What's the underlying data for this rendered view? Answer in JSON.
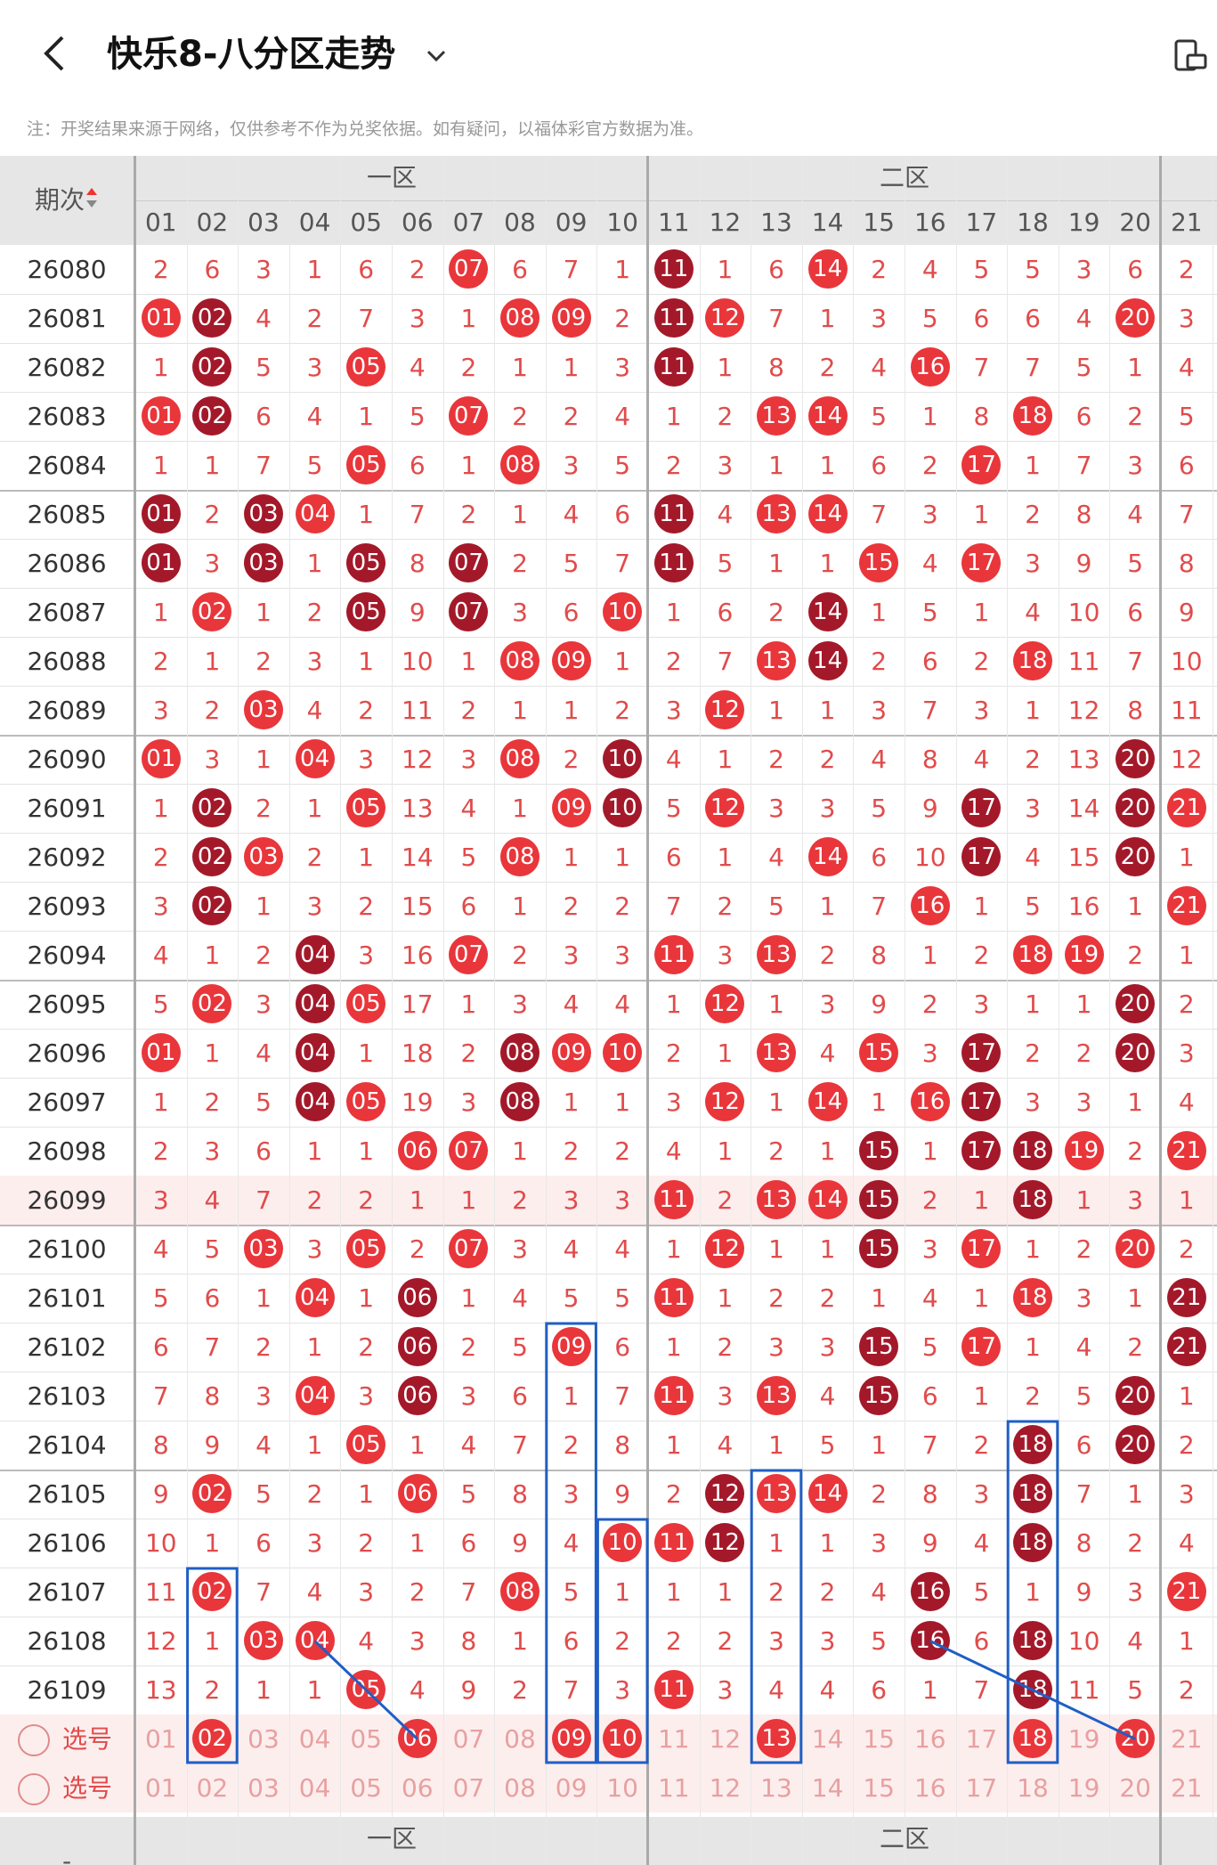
{
  "header": {
    "title": "快乐8-八分区走势",
    "back_icon": "chevron-left-icon",
    "dropdown_icon": "chevron-down-icon",
    "device_icon": "device-toggle-icon"
  },
  "notice": "注：开奖结果来源于网络，仅供参考不作为兑奖依据。如有疑问，以福体彩官方数据为准。",
  "table": {
    "period_header": "期次",
    "sort_icon": "sort-up-down-icon",
    "zones": [
      "一区",
      "二区"
    ],
    "columns": [
      "01",
      "02",
      "03",
      "04",
      "05",
      "06",
      "07",
      "08",
      "09",
      "10",
      "11",
      "12",
      "13",
      "14",
      "15",
      "16",
      "17",
      "18",
      "19",
      "20",
      "21"
    ],
    "rows": [
      {
        "period": "26080",
        "cells": [
          "2",
          "6",
          "3",
          "1",
          "6",
          "2",
          "07",
          "6",
          "7",
          "1",
          "11",
          "1",
          "6",
          "14",
          "2",
          "4",
          "5",
          "5",
          "3",
          "6",
          "2"
        ]
      },
      {
        "period": "26081",
        "cells": [
          "01",
          "02",
          "4",
          "2",
          "7",
          "3",
          "1",
          "08",
          "09",
          "2",
          "11",
          "12",
          "7",
          "1",
          "3",
          "5",
          "6",
          "6",
          "4",
          "20",
          "3"
        ]
      },
      {
        "period": "26082",
        "cells": [
          "1",
          "02",
          "5",
          "3",
          "05",
          "4",
          "2",
          "1",
          "1",
          "3",
          "11",
          "1",
          "8",
          "2",
          "4",
          "16",
          "7",
          "7",
          "5",
          "1",
          "4"
        ]
      },
      {
        "period": "26083",
        "cells": [
          "01",
          "02",
          "6",
          "4",
          "1",
          "5",
          "07",
          "2",
          "2",
          "4",
          "1",
          "2",
          "13",
          "14",
          "5",
          "1",
          "8",
          "18",
          "6",
          "2",
          "5"
        ]
      },
      {
        "period": "26084",
        "cells": [
          "1",
          "1",
          "7",
          "5",
          "05",
          "6",
          "1",
          "08",
          "3",
          "5",
          "2",
          "3",
          "1",
          "1",
          "6",
          "2",
          "17",
          "1",
          "7",
          "3",
          "6"
        ]
      },
      {
        "period": "26085",
        "cells": [
          "01",
          "2",
          "03",
          "04",
          "1",
          "7",
          "2",
          "1",
          "4",
          "6",
          "11",
          "4",
          "13",
          "14",
          "7",
          "3",
          "1",
          "2",
          "8",
          "4",
          "7"
        ]
      },
      {
        "period": "26086",
        "cells": [
          "01",
          "3",
          "03",
          "1",
          "05",
          "8",
          "07",
          "2",
          "5",
          "7",
          "11",
          "5",
          "1",
          "1",
          "15",
          "4",
          "17",
          "3",
          "9",
          "5",
          "8"
        ]
      },
      {
        "period": "26087",
        "cells": [
          "1",
          "02",
          "1",
          "2",
          "05",
          "9",
          "07",
          "3",
          "6",
          "10",
          "1",
          "6",
          "2",
          "14",
          "1",
          "5",
          "1",
          "4",
          "10",
          "6",
          "9"
        ]
      },
      {
        "period": "26088",
        "cells": [
          "2",
          "1",
          "2",
          "3",
          "1",
          "10",
          "1",
          "08",
          "09",
          "1",
          "2",
          "7",
          "13",
          "14",
          "2",
          "6",
          "2",
          "18",
          "11",
          "7",
          "10"
        ]
      },
      {
        "period": "26089",
        "cells": [
          "3",
          "2",
          "03",
          "4",
          "2",
          "11",
          "2",
          "1",
          "1",
          "2",
          "3",
          "12",
          "1",
          "1",
          "3",
          "7",
          "3",
          "1",
          "12",
          "8",
          "11"
        ]
      },
      {
        "period": "26090",
        "cells": [
          "01",
          "3",
          "1",
          "04",
          "3",
          "12",
          "3",
          "08",
          "2",
          "10",
          "4",
          "1",
          "2",
          "2",
          "4",
          "8",
          "4",
          "2",
          "13",
          "20",
          "12"
        ]
      },
      {
        "period": "26091",
        "cells": [
          "1",
          "02",
          "2",
          "1",
          "05",
          "13",
          "4",
          "1",
          "09",
          "10",
          "5",
          "12",
          "3",
          "3",
          "5",
          "9",
          "17",
          "3",
          "14",
          "20",
          "21"
        ]
      },
      {
        "period": "26092",
        "cells": [
          "2",
          "02",
          "03",
          "2",
          "1",
          "14",
          "5",
          "08",
          "1",
          "1",
          "6",
          "1",
          "4",
          "14",
          "6",
          "10",
          "17",
          "4",
          "15",
          "20",
          "1"
        ]
      },
      {
        "period": "26093",
        "cells": [
          "3",
          "02",
          "1",
          "3",
          "2",
          "15",
          "6",
          "1",
          "2",
          "2",
          "7",
          "2",
          "5",
          "1",
          "7",
          "16",
          "1",
          "5",
          "16",
          "1",
          "21"
        ]
      },
      {
        "period": "26094",
        "cells": [
          "4",
          "1",
          "2",
          "04",
          "3",
          "16",
          "07",
          "2",
          "3",
          "3",
          "11",
          "3",
          "13",
          "2",
          "8",
          "1",
          "2",
          "18",
          "19",
          "2",
          "1"
        ]
      },
      {
        "period": "26095",
        "cells": [
          "5",
          "02",
          "3",
          "04",
          "05",
          "17",
          "1",
          "3",
          "4",
          "4",
          "1",
          "12",
          "1",
          "3",
          "9",
          "2",
          "3",
          "1",
          "1",
          "20",
          "2"
        ]
      },
      {
        "period": "26096",
        "cells": [
          "01",
          "1",
          "4",
          "04",
          "1",
          "18",
          "2",
          "08",
          "09",
          "10",
          "2",
          "1",
          "13",
          "4",
          "15",
          "3",
          "17",
          "2",
          "2",
          "20",
          "3"
        ]
      },
      {
        "period": "26097",
        "cells": [
          "1",
          "2",
          "5",
          "04",
          "05",
          "19",
          "3",
          "08",
          "1",
          "1",
          "3",
          "12",
          "1",
          "14",
          "1",
          "16",
          "17",
          "3",
          "3",
          "1",
          "4"
        ]
      },
      {
        "period": "26098",
        "cells": [
          "2",
          "3",
          "6",
          "1",
          "1",
          "06",
          "07",
          "1",
          "2",
          "2",
          "4",
          "1",
          "2",
          "1",
          "15",
          "1",
          "17",
          "18",
          "19",
          "2",
          "21"
        ]
      },
      {
        "period": "26099",
        "cells": [
          "3",
          "4",
          "7",
          "2",
          "2",
          "1",
          "1",
          "2",
          "3",
          "3",
          "11",
          "2",
          "13",
          "14",
          "15",
          "2",
          "1",
          "18",
          "1",
          "3",
          "1"
        ]
      },
      {
        "period": "26100",
        "cells": [
          "4",
          "5",
          "03",
          "3",
          "05",
          "2",
          "07",
          "3",
          "4",
          "4",
          "1",
          "12",
          "1",
          "1",
          "15",
          "3",
          "17",
          "1",
          "2",
          "20",
          "2"
        ]
      },
      {
        "period": "26101",
        "cells": [
          "5",
          "6",
          "1",
          "04",
          "1",
          "06",
          "1",
          "4",
          "5",
          "5",
          "11",
          "1",
          "2",
          "2",
          "1",
          "4",
          "1",
          "18",
          "3",
          "1",
          "21"
        ]
      },
      {
        "period": "26102",
        "cells": [
          "6",
          "7",
          "2",
          "1",
          "2",
          "06",
          "2",
          "5",
          "09",
          "6",
          "1",
          "2",
          "3",
          "3",
          "15",
          "5",
          "17",
          "1",
          "4",
          "2",
          "21"
        ]
      },
      {
        "period": "26103",
        "cells": [
          "7",
          "8",
          "3",
          "04",
          "3",
          "06",
          "3",
          "6",
          "1",
          "7",
          "11",
          "3",
          "13",
          "4",
          "15",
          "6",
          "1",
          "2",
          "5",
          "20",
          "1"
        ]
      },
      {
        "period": "26104",
        "cells": [
          "8",
          "9",
          "4",
          "1",
          "05",
          "1",
          "4",
          "7",
          "2",
          "8",
          "1",
          "4",
          "1",
          "5",
          "1",
          "7",
          "2",
          "18",
          "6",
          "20",
          "2"
        ]
      },
      {
        "period": "26105",
        "cells": [
          "9",
          "02",
          "5",
          "2",
          "1",
          "06",
          "5",
          "8",
          "3",
          "9",
          "2",
          "12",
          "13",
          "14",
          "2",
          "8",
          "3",
          "18",
          "7",
          "1",
          "3"
        ]
      },
      {
        "period": "26106",
        "cells": [
          "10",
          "1",
          "6",
          "3",
          "2",
          "1",
          "6",
          "9",
          "4",
          "10",
          "11",
          "12",
          "1",
          "1",
          "3",
          "9",
          "4",
          "18",
          "8",
          "2",
          "4"
        ]
      },
      {
        "period": "26107",
        "cells": [
          "11",
          "02",
          "7",
          "4",
          "3",
          "2",
          "7",
          "08",
          "5",
          "1",
          "1",
          "1",
          "2",
          "2",
          "4",
          "16",
          "5",
          "1",
          "9",
          "3",
          "21"
        ]
      },
      {
        "period": "26108",
        "cells": [
          "12",
          "1",
          "03",
          "04",
          "4",
          "3",
          "8",
          "1",
          "6",
          "2",
          "2",
          "2",
          "3",
          "3",
          "5",
          "16",
          "6",
          "18",
          "10",
          "4",
          "1"
        ]
      },
      {
        "period": "26109",
        "cells": [
          "13",
          "2",
          "1",
          "1",
          "05",
          "4",
          "9",
          "2",
          "7",
          "3",
          "11",
          "3",
          "4",
          "4",
          "6",
          "1",
          "7",
          "18",
          "11",
          "5",
          "2"
        ]
      }
    ],
    "pick_rows": [
      {
        "label": "选号",
        "cells": [
          "01",
          "02",
          "03",
          "04",
          "05",
          "06",
          "07",
          "08",
          "09",
          "10",
          "11",
          "12",
          "13",
          "14",
          "15",
          "16",
          "17",
          "18",
          "19",
          "20",
          "21"
        ]
      },
      {
        "label": "选号",
        "cells": [
          "01",
          "02",
          "03",
          "04",
          "05",
          "06",
          "07",
          "08",
          "09",
          "10",
          "11",
          "12",
          "13",
          "14",
          "15",
          "16",
          "17",
          "18",
          "19",
          "20",
          "21"
        ]
      }
    ],
    "selected_first_pick": [
      "02",
      "06",
      "09",
      "10",
      "13",
      "18",
      "20"
    ],
    "footer_zones": [
      "一区",
      "二区"
    ],
    "footer_period": "-"
  },
  "colors": {
    "ball": "#e8363b",
    "ball_dark": "#a3192a",
    "miss": "#e14b4b",
    "box": "#1f5fc4"
  }
}
